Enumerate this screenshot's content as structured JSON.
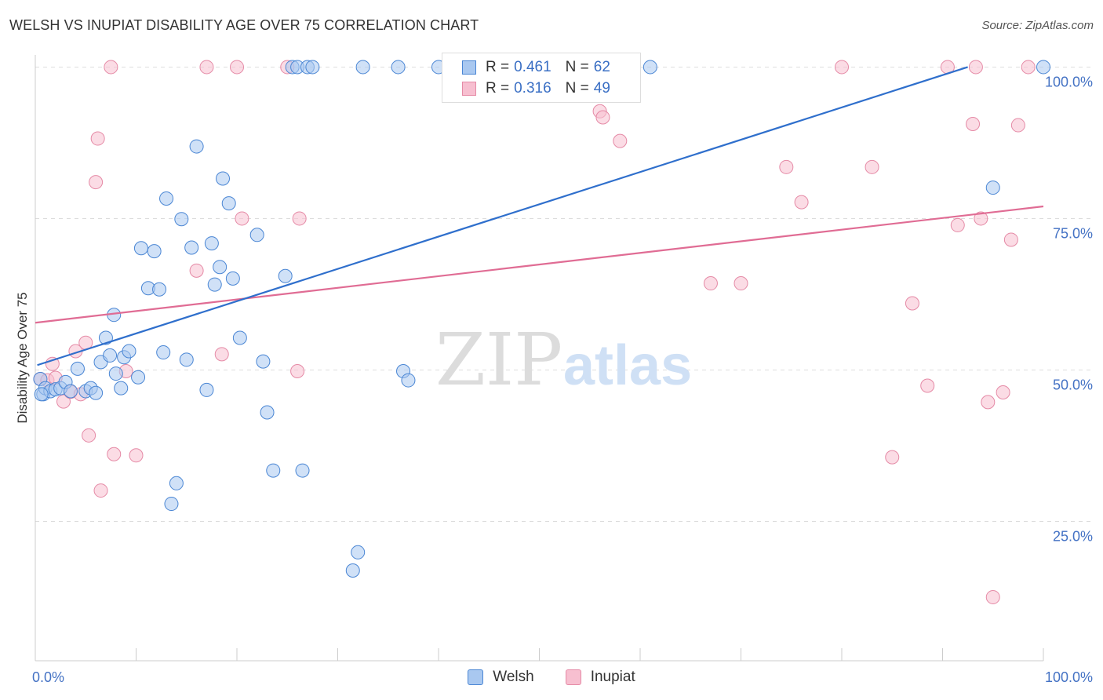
{
  "header": {
    "title": "WELSH VS INUPIAT DISABILITY AGE OVER 75 CORRELATION CHART",
    "source": "Source: ZipAtlas.com"
  },
  "watermark": {
    "zip": "ZIP",
    "atlas": "atlas"
  },
  "legend_top": {
    "welsh": {
      "r_label": "R =",
      "r_value": "0.461",
      "n_label": "N =",
      "n_value": "62"
    },
    "inupiat": {
      "r_label": "R =",
      "r_value": "0.316",
      "n_label": "N =",
      "n_value": "49"
    }
  },
  "legend_bottom": {
    "welsh": "Welsh",
    "inupiat": "Inupiat"
  },
  "colors": {
    "welsh_fill": "#a9c8f0",
    "welsh_stroke": "#4a86d4",
    "welsh_line": "#2f6fcc",
    "inupiat_fill": "#f7bfd0",
    "inupiat_stroke": "#e58aa6",
    "inupiat_line": "#e06c94",
    "tick_label": "#4472c4",
    "grid": "#dddddd"
  },
  "chart_data": {
    "type": "scatter",
    "title": "WELSH VS INUPIAT DISABILITY AGE OVER 75 CORRELATION CHART",
    "xlabel": "",
    "ylabel": "Disability Age Over 75",
    "xlim": [
      0,
      100
    ],
    "ylim": [
      2,
      102
    ],
    "y_ticks": [
      {
        "value": 25,
        "label": "25.0%"
      },
      {
        "value": 50,
        "label": "50.0%"
      },
      {
        "value": 75,
        "label": "75.0%"
      },
      {
        "value": 100,
        "label": "100.0%"
      }
    ],
    "x_tick_labels": [
      {
        "value": 0,
        "label": "0.0%"
      },
      {
        "value": 100,
        "label": "100.0%"
      }
    ],
    "x_minor_ticks": [
      0,
      10,
      20,
      30,
      40,
      50,
      60,
      70,
      80,
      90,
      100
    ],
    "grid": true,
    "legend_position": "top-center",
    "series": [
      {
        "name": "Welsh",
        "r": 0.461,
        "n": 62,
        "trend": [
          [
            0.2,
            50.8
          ],
          [
            92.5,
            100.0
          ]
        ],
        "points": [
          [
            0.5,
            48.5
          ],
          [
            0.8,
            46.0
          ],
          [
            1.0,
            47.0
          ],
          [
            1.5,
            46.5
          ],
          [
            2.0,
            46.8
          ],
          [
            2.5,
            47.0
          ],
          [
            3.0,
            48.0
          ],
          [
            3.5,
            46.5
          ],
          [
            4.2,
            50.2
          ],
          [
            5.0,
            46.5
          ],
          [
            5.5,
            47.0
          ],
          [
            6.0,
            46.2
          ],
          [
            6.5,
            51.3
          ],
          [
            7.0,
            55.3
          ],
          [
            7.4,
            52.4
          ],
          [
            7.8,
            59.1
          ],
          [
            8.0,
            49.4
          ],
          [
            8.5,
            47.0
          ],
          [
            8.8,
            52.1
          ],
          [
            9.3,
            53.1
          ],
          [
            10.2,
            48.8
          ],
          [
            10.5,
            70.1
          ],
          [
            11.2,
            63.5
          ],
          [
            11.8,
            69.6
          ],
          [
            12.3,
            63.3
          ],
          [
            12.7,
            52.9
          ],
          [
            13.0,
            78.3
          ],
          [
            13.5,
            27.9
          ],
          [
            14.0,
            31.3
          ],
          [
            14.5,
            74.9
          ],
          [
            15.0,
            51.7
          ],
          [
            15.5,
            70.2
          ],
          [
            16.0,
            86.9
          ],
          [
            17.0,
            46.7
          ],
          [
            17.5,
            70.9
          ],
          [
            17.8,
            64.1
          ],
          [
            18.3,
            67.0
          ],
          [
            18.6,
            81.6
          ],
          [
            19.2,
            77.5
          ],
          [
            19.6,
            65.1
          ],
          [
            20.3,
            55.3
          ],
          [
            22.0,
            72.3
          ],
          [
            22.6,
            51.4
          ],
          [
            23.0,
            43.0
          ],
          [
            23.6,
            33.4
          ],
          [
            24.8,
            65.5
          ],
          [
            25.5,
            100.0
          ],
          [
            26.0,
            100.0
          ],
          [
            26.5,
            33.4
          ],
          [
            27.0,
            100.0
          ],
          [
            27.5,
            100.0
          ],
          [
            31.5,
            16.9
          ],
          [
            32.0,
            19.9
          ],
          [
            32.5,
            100.0
          ],
          [
            36.0,
            100.0
          ],
          [
            36.5,
            49.8
          ],
          [
            37.0,
            48.3
          ],
          [
            40.0,
            100.0
          ],
          [
            61.0,
            100.0
          ],
          [
            95.0,
            80.1
          ],
          [
            100.0,
            100.0
          ],
          [
            0.6,
            46.0
          ]
        ]
      },
      {
        "name": "Inupiat",
        "r": 0.316,
        "n": 49,
        "trend": [
          [
            0.0,
            57.8
          ],
          [
            100.0,
            77.0
          ]
        ],
        "points": [
          [
            0.5,
            48.5
          ],
          [
            1.2,
            48.3
          ],
          [
            1.7,
            51.0
          ],
          [
            2.0,
            48.7
          ],
          [
            2.8,
            44.8
          ],
          [
            3.5,
            46.4
          ],
          [
            4.0,
            53.1
          ],
          [
            4.5,
            46.0
          ],
          [
            5.0,
            54.5
          ],
          [
            5.3,
            39.2
          ],
          [
            6.0,
            81.0
          ],
          [
            6.2,
            88.2
          ],
          [
            6.5,
            30.1
          ],
          [
            7.5,
            100.0
          ],
          [
            7.8,
            36.1
          ],
          [
            9.0,
            49.8
          ],
          [
            10.0,
            35.9
          ],
          [
            16.0,
            66.4
          ],
          [
            17.0,
            100.0
          ],
          [
            18.5,
            52.6
          ],
          [
            20.0,
            100.0
          ],
          [
            20.5,
            75.0
          ],
          [
            25.0,
            100.0
          ],
          [
            26.0,
            49.8
          ],
          [
            26.2,
            75.0
          ],
          [
            54.0,
            95.5
          ],
          [
            56.0,
            92.7
          ],
          [
            56.3,
            91.7
          ],
          [
            58.0,
            87.8
          ],
          [
            67.0,
            64.3
          ],
          [
            70.0,
            64.3
          ],
          [
            74.5,
            83.5
          ],
          [
            76.0,
            77.7
          ],
          [
            80.0,
            100.0
          ],
          [
            83.0,
            83.5
          ],
          [
            85.0,
            35.6
          ],
          [
            87.0,
            61.0
          ],
          [
            88.5,
            47.4
          ],
          [
            90.5,
            100.0
          ],
          [
            91.5,
            73.9
          ],
          [
            93.0,
            90.6
          ],
          [
            93.3,
            100.0
          ],
          [
            93.8,
            75.0
          ],
          [
            94.5,
            44.7
          ],
          [
            95.0,
            12.5
          ],
          [
            96.0,
            46.3
          ],
          [
            96.8,
            71.5
          ],
          [
            97.5,
            90.4
          ],
          [
            98.5,
            100.0
          ]
        ]
      }
    ]
  }
}
